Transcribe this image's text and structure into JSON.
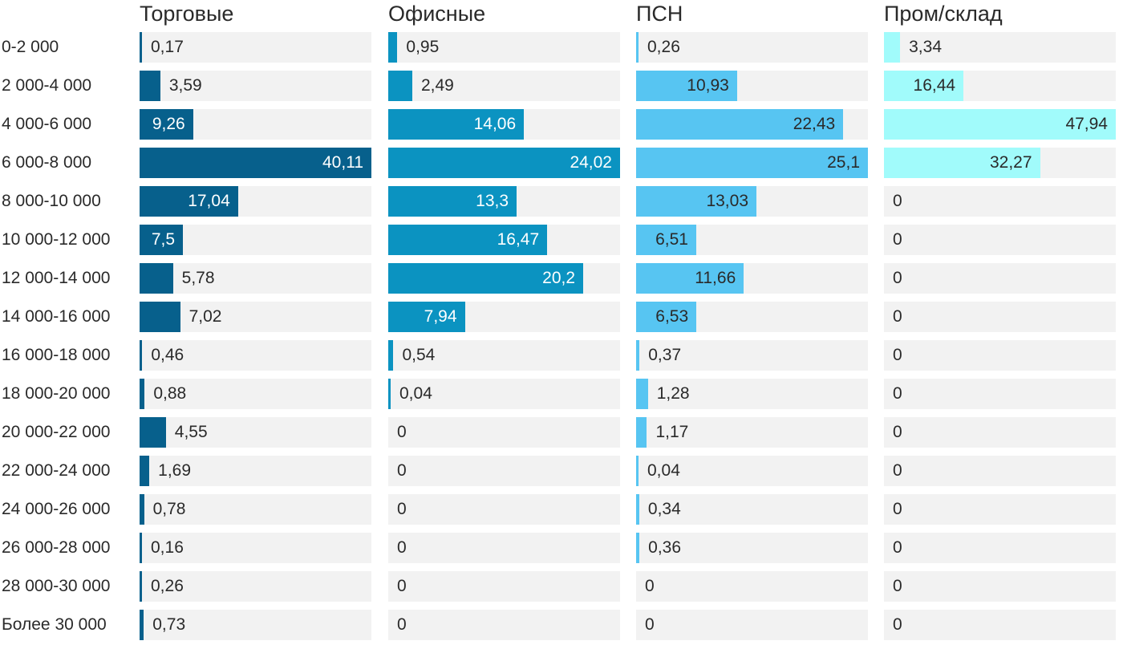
{
  "chart_data": {
    "type": "bar",
    "orientation": "horizontal",
    "axis_scaling": "each column scaled independently from 0 to its own max value",
    "decimal_separator": ",",
    "track_color": "#f2f2f2",
    "text_color": "#2a2a2a",
    "background_color": "#ffffff",
    "categories": [
      "0-2 000",
      "2 000-4 000",
      "4 000-6 000",
      "6 000-8 000",
      "8 000-10 000",
      "10 000-12 000",
      "12 000-14 000",
      "14 000-16 000",
      "16 000-18 000",
      "18 000-20 000",
      "20 000-22 000",
      "22 000-24 000",
      "24 000-26 000",
      "26 000-28 000",
      "28 000-30 000",
      "Более 30 000"
    ],
    "series": [
      {
        "name": "Торговые",
        "color": "#07608c",
        "inside_label_color": "#ffffff",
        "xlim": [
          0,
          40.11
        ],
        "values": [
          0.17,
          3.59,
          9.26,
          40.11,
          17.04,
          7.5,
          5.78,
          7.02,
          0.46,
          0.88,
          4.55,
          1.69,
          0.78,
          0.16,
          0.26,
          0.73
        ]
      },
      {
        "name": "Офисные",
        "color": "#0b93c1",
        "inside_label_color": "#ffffff",
        "xlim": [
          0,
          24.02
        ],
        "values": [
          0.95,
          2.49,
          14.06,
          24.02,
          13.3,
          16.47,
          20.2,
          7.94,
          0.54,
          0.04,
          0,
          0,
          0,
          0,
          0,
          0
        ]
      },
      {
        "name": "ПСН",
        "color": "#57c5f2",
        "inside_label_color": "#2a2a2a",
        "xlim": [
          0,
          25.1
        ],
        "values": [
          0.26,
          10.93,
          22.43,
          25.1,
          13.03,
          6.51,
          11.66,
          6.53,
          0.37,
          1.28,
          1.17,
          0.04,
          0.34,
          0.36,
          0,
          0
        ]
      },
      {
        "name": "Пром/склад",
        "color": "#a1fbfb",
        "inside_label_color": "#2a2a2a",
        "xlim": [
          0,
          47.94
        ],
        "values": [
          3.34,
          16.44,
          47.94,
          32.27,
          0,
          0,
          0,
          0,
          0,
          0,
          0,
          0,
          0,
          0,
          0,
          0
        ]
      }
    ]
  }
}
